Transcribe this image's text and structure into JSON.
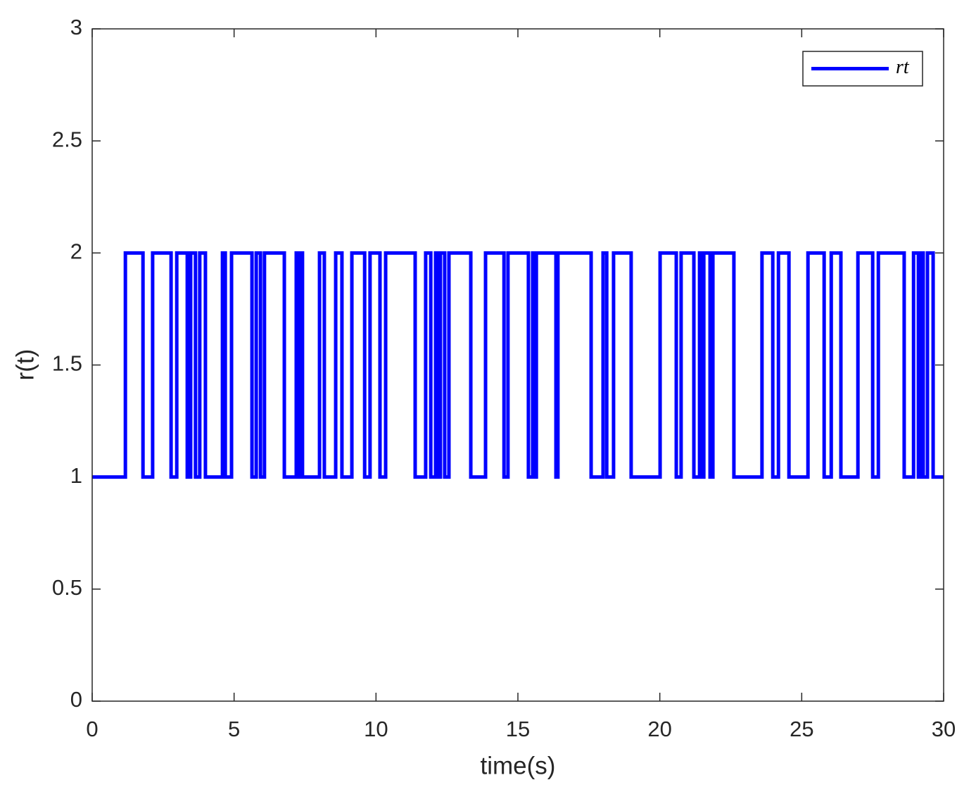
{
  "chart_data": {
    "type": "line",
    "xlabel": "time(s)",
    "ylabel": "r(t)",
    "xlim": [
      0,
      30
    ],
    "ylim": [
      0,
      3
    ],
    "xticks": [
      0,
      5,
      10,
      15,
      20,
      25,
      30
    ],
    "yticks": [
      0,
      0.5,
      1,
      1.5,
      2,
      2.5,
      3
    ],
    "grid": false,
    "legend": "top-right",
    "x": [
      0,
      1.17,
      1.17,
      1.79,
      1.79,
      2.13,
      2.13,
      2.78,
      2.78,
      2.98,
      2.98,
      3.35,
      3.35,
      3.47,
      3.47,
      3.64,
      3.64,
      3.79,
      3.79,
      3.99,
      3.99,
      4.59,
      4.59,
      4.69,
      4.69,
      4.91,
      4.91,
      5.63,
      5.63,
      5.78,
      5.78,
      5.93,
      5.93,
      6.07,
      6.07,
      6.77,
      6.77,
      7.19,
      7.19,
      7.24,
      7.24,
      7.31,
      7.31,
      7.41,
      7.41,
      8.01,
      8.01,
      8.18,
      8.18,
      8.58,
      8.58,
      8.8,
      8.8,
      9.15,
      9.15,
      9.6,
      9.6,
      9.79,
      9.79,
      10.14,
      10.14,
      10.34,
      10.34,
      11.38,
      11.38,
      11.75,
      11.75,
      11.93,
      11.93,
      12.1,
      12.1,
      12.17,
      12.17,
      12.27,
      12.27,
      12.42,
      12.42,
      12.57,
      12.57,
      13.34,
      13.34,
      13.86,
      13.86,
      14.51,
      14.51,
      14.65,
      14.65,
      15.37,
      15.37,
      15.52,
      15.52,
      15.57,
      15.57,
      15.65,
      15.65,
      16.34,
      16.34,
      16.41,
      16.41,
      17.58,
      17.58,
      18,
      18,
      18.13,
      18.13,
      18.37,
      18.37,
      18.99,
      18.99,
      20.01,
      20.01,
      20.58,
      20.58,
      20.75,
      20.75,
      21.2,
      21.2,
      21.4,
      21.4,
      21.47,
      21.47,
      21.55,
      21.55,
      21.77,
      21.77,
      21.87,
      21.87,
      22.61,
      22.61,
      23.6,
      23.6,
      23.98,
      23.98,
      24.18,
      24.18,
      24.55,
      24.55,
      25.22,
      25.22,
      25.79,
      25.79,
      26.04,
      26.04,
      26.38,
      26.38,
      26.98,
      26.98,
      27.5,
      27.5,
      27.7,
      27.7,
      28.61,
      28.61,
      28.94,
      28.94,
      29.11,
      29.11,
      29.21,
      29.21,
      29.28,
      29.28,
      29.43,
      29.43,
      29.63,
      29.63,
      30
    ],
    "series": [
      {
        "name": "rt",
        "color": "#0000ff",
        "values": [
          1,
          1,
          2,
          2,
          1,
          1,
          2,
          2,
          1,
          1,
          2,
          2,
          1,
          1,
          2,
          2,
          1,
          1,
          2,
          2,
          1,
          1,
          2,
          2,
          1,
          1,
          2,
          2,
          1,
          1,
          2,
          2,
          1,
          1,
          2,
          2,
          1,
          1,
          2,
          2,
          1,
          1,
          2,
          2,
          1,
          1,
          2,
          2,
          1,
          1,
          2,
          2,
          1,
          1,
          2,
          2,
          1,
          1,
          2,
          2,
          1,
          1,
          2,
          2,
          1,
          1,
          2,
          2,
          1,
          1,
          2,
          2,
          1,
          1,
          2,
          2,
          1,
          1,
          2,
          2,
          1,
          1,
          2,
          2,
          1,
          1,
          2,
          2,
          1,
          1,
          2,
          2,
          1,
          1,
          2,
          2,
          1,
          1,
          2,
          2,
          1,
          1,
          2,
          2,
          1,
          1,
          2,
          2,
          1,
          1,
          2,
          2,
          1,
          1,
          2,
          2,
          1,
          1,
          2,
          2,
          1,
          1,
          2,
          2,
          1,
          1,
          2,
          2,
          1,
          1,
          2,
          2,
          1,
          1,
          2,
          2,
          1,
          1,
          2,
          2,
          1,
          1,
          2,
          2,
          1,
          1,
          2,
          2,
          1,
          1,
          2,
          2,
          1,
          1,
          2,
          2,
          1,
          1,
          2,
          2,
          1,
          1,
          2,
          2,
          1,
          1
        ]
      }
    ]
  }
}
